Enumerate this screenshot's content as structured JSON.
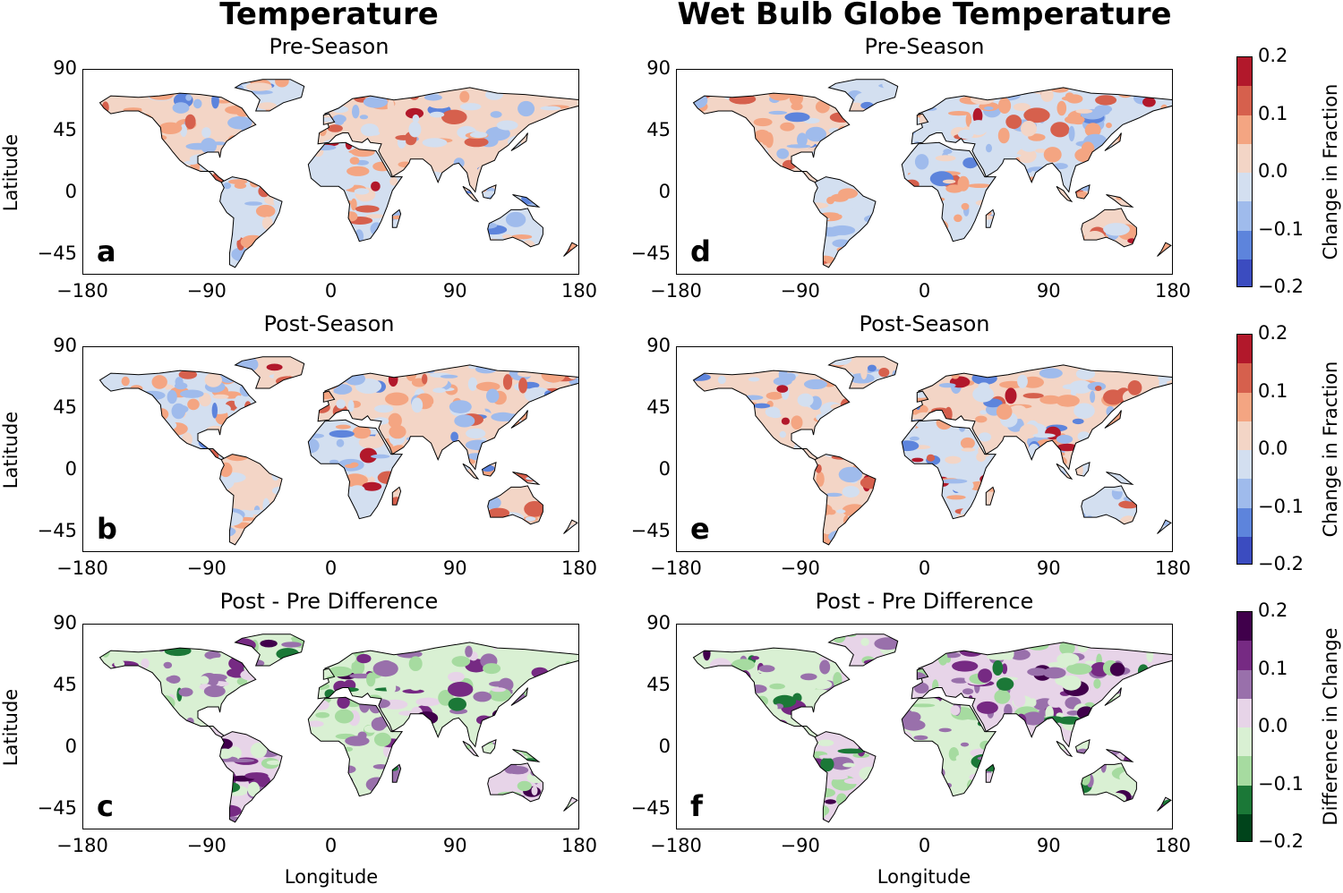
{
  "columns": [
    {
      "title": "Temperature"
    },
    {
      "title": "Wet Bulb Globe Temperature"
    }
  ],
  "rows": [
    {
      "title": "Pre-Season"
    },
    {
      "title": "Post-Season"
    },
    {
      "title": "Post - Pre Difference"
    }
  ],
  "panels": [
    {
      "letter": "a",
      "variable": "Temperature",
      "period": "Pre-Season",
      "palette": "diverging_rb"
    },
    {
      "letter": "b",
      "variable": "Temperature",
      "period": "Post-Season",
      "palette": "diverging_rb"
    },
    {
      "letter": "c",
      "variable": "Temperature",
      "period": "Post - Pre Difference",
      "palette": "diverging_pg"
    },
    {
      "letter": "d",
      "variable": "Wet Bulb Globe Temperature",
      "period": "Pre-Season",
      "palette": "diverging_rb"
    },
    {
      "letter": "e",
      "variable": "Wet Bulb Globe Temperature",
      "period": "Post-Season",
      "palette": "diverging_rb"
    },
    {
      "letter": "f",
      "variable": "Wet Bulb Globe Temperature",
      "period": "Post - Pre Difference",
      "palette": "diverging_pg"
    }
  ],
  "axes": {
    "xlabel": "Longitude",
    "ylabel": "Latitude",
    "xticks": [
      "−180",
      "−90",
      "0",
      "90",
      "180"
    ],
    "yticks": [
      "90",
      "45",
      "0",
      "−45"
    ],
    "xlim": [
      -180,
      180
    ],
    "ylim": [
      -60,
      90
    ]
  },
  "colorbars": [
    {
      "label": "Change in Fraction",
      "ticks": [
        "0.2",
        "0.1",
        "0.0",
        "−0.1",
        "−0.2"
      ],
      "range": [
        -0.2,
        0.2
      ],
      "colors": [
        "#b2182b",
        "#d6604d",
        "#f4a582",
        "#f3d5c6",
        "#d3dff0",
        "#9fbbec",
        "#5d84dc",
        "#3b4cc0"
      ]
    },
    {
      "label": "Change in Fraction",
      "ticks": [
        "0.2",
        "0.1",
        "0.0",
        "−0.1",
        "−0.2"
      ],
      "range": [
        -0.2,
        0.2
      ],
      "colors": [
        "#b2182b",
        "#d6604d",
        "#f4a582",
        "#f3d5c6",
        "#d3dff0",
        "#9fbbec",
        "#5d84dc",
        "#3b4cc0"
      ]
    },
    {
      "label": "Difference in Change",
      "ticks": [
        "0.2",
        "0.1",
        "0.0",
        "−0.1",
        "−0.2"
      ],
      "range": [
        -0.2,
        0.2
      ],
      "colors": [
        "#40004b",
        "#762a83",
        "#9970ab",
        "#e7d4e8",
        "#d9f0d3",
        "#a6dba0",
        "#1b7837",
        "#00441b"
      ]
    }
  ]
}
